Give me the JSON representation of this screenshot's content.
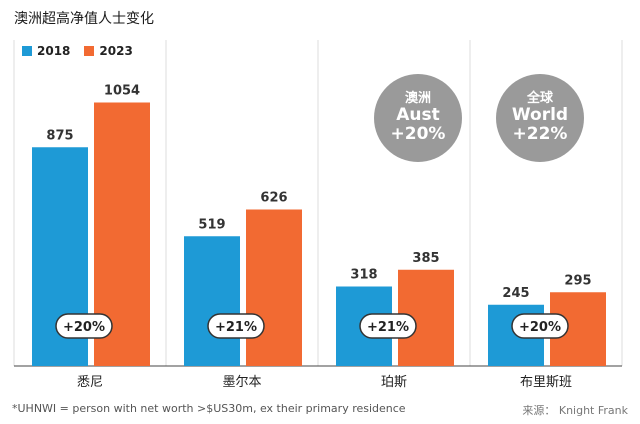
{
  "header": {
    "title": "澳洲超高净值人士变化"
  },
  "chart_data": {
    "type": "bar",
    "title": "澳洲超高净值人士变化",
    "categories": [
      "悉尼",
      "墨尔本",
      "珀斯",
      "布里斯班"
    ],
    "series": [
      {
        "name": "2018",
        "values": [
          875,
          519,
          318,
          245
        ]
      },
      {
        "name": "2023",
        "values": [
          1054,
          626,
          385,
          295
        ]
      }
    ],
    "change_labels": [
      "+20%",
      "+21%",
      "+21%",
      "+20%"
    ],
    "ylim": [
      0,
      1200
    ],
    "grid": false,
    "legend": "top-left",
    "colors": {
      "2018": "#1e9ad6",
      "2023": "#f26a32",
      "bubble": "#9a9a9a"
    }
  },
  "summary": {
    "aust": {
      "label": "澳洲",
      "name": "Aust",
      "value": "+20%"
    },
    "world": {
      "label": "全球",
      "name": "World",
      "value": "+22%"
    }
  },
  "footer": {
    "footnote": "*UHNWI = person with net worth >$US30m, ex their primary residence",
    "source": "来源：  Knight Frank"
  }
}
